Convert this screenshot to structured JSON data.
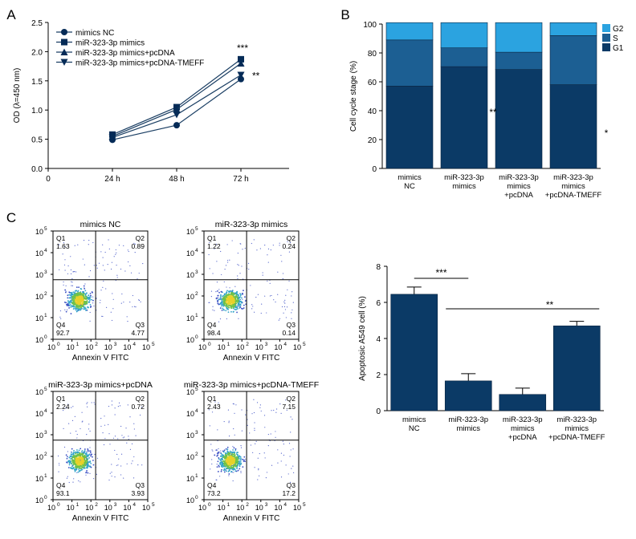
{
  "colors": {
    "navy": "#0b3a66",
    "mid": "#1c5f93",
    "light": "#2ba3e0",
    "dark": "#052b57",
    "line": "#1a3e63",
    "axis": "#000000"
  },
  "panel_labels": {
    "A": "A",
    "B": "B",
    "C": "C"
  },
  "chart_data": [
    {
      "id": "A",
      "type": "line",
      "title": "",
      "xlabel": "",
      "ylabel": "OD (λ=450 nm)",
      "x_tick_labels": [
        "0",
        "24 h",
        "48 h",
        "72 h"
      ],
      "x": [
        24,
        48,
        72
      ],
      "xlim": [
        0,
        90
      ],
      "ylim": [
        0,
        2.5
      ],
      "y_ticks": [
        "0.0",
        "0.5",
        "1.0",
        "1.5",
        "2.0",
        "2.5"
      ],
      "series": [
        {
          "name": "mimics NC",
          "marker": "circle",
          "values": [
            0.49,
            0.74,
            1.53
          ]
        },
        {
          "name": "miR-323-3p mimics",
          "marker": "square",
          "values": [
            0.58,
            1.05,
            1.87
          ]
        },
        {
          "name": "miR-323-3p mimics+pcDNA",
          "marker": "triangle-up",
          "values": [
            0.55,
            1.01,
            1.8
          ]
        },
        {
          "name": "miR-323-3p mimics+pcDNA-TMEFF",
          "marker": "triangle-down",
          "values": [
            0.53,
            0.92,
            1.6
          ]
        }
      ],
      "annotations": [
        "***",
        "**"
      ]
    },
    {
      "id": "B",
      "type": "bar",
      "stacked": true,
      "ylabel": "Cell cycle stage (%)",
      "ylim": [
        0,
        100
      ],
      "y_ticks": [
        "0",
        "20",
        "40",
        "60",
        "80",
        "100"
      ],
      "categories": [
        [
          "mimics",
          "NC"
        ],
        [
          "miR-323-3p",
          "mimics"
        ],
        [
          "miR-323-3p",
          "mimics",
          "+pcDNA"
        ],
        [
          "miR-323-3p",
          "mimics",
          "+pcDNA-TMEFF"
        ]
      ],
      "series": [
        {
          "name": "G1",
          "values": [
            57,
            70.5,
            68.5,
            58
          ]
        },
        {
          "name": "S",
          "values": [
            32,
            13,
            12,
            34
          ]
        },
        {
          "name": "G2",
          "values": [
            12,
            17.5,
            20.5,
            9
          ]
        }
      ],
      "legend": [
        "G2",
        "S",
        "G1"
      ],
      "annotations": [
        "**",
        "*"
      ]
    },
    {
      "id": "C-flow",
      "type": "scatter",
      "xlabel": "Annexin V FITC",
      "axis_tick_labels": [
        "10",
        "10",
        "10",
        "10",
        "10",
        "10"
      ],
      "axis_tick_exps": [
        "0",
        "1",
        "2",
        "3",
        "4",
        "5"
      ],
      "plots": [
        {
          "title": "mimics NC",
          "q1": {
            "label": "Q1",
            "value": "1.63"
          },
          "q2": {
            "label": "Q2",
            "value": "0.89"
          },
          "q3": {
            "label": "Q3",
            "value": "4.77"
          },
          "q4": {
            "label": "Q4",
            "value": "92.7"
          }
        },
        {
          "title": "miR-323-3p mimics",
          "q1": {
            "label": "Q1",
            "value": "1.22"
          },
          "q2": {
            "label": "Q2",
            "value": "0.24"
          },
          "q3": {
            "label": "Q3",
            "value": "0.14"
          },
          "q4": {
            "label": "Q4",
            "value": "98.4"
          }
        },
        {
          "title": "miR-323-3p mimics+pcDNA",
          "q1": {
            "label": "Q1",
            "value": "2.24"
          },
          "q2": {
            "label": "Q2",
            "value": "0.72"
          },
          "q3": {
            "label": "Q3",
            "value": "3.93"
          },
          "q4": {
            "label": "Q4",
            "value": "93.1"
          }
        },
        {
          "title": "miR-323-3p mimics+pcDNA-TMEFF",
          "q1": {
            "label": "Q1",
            "value": "2.43"
          },
          "q2": {
            "label": "Q2",
            "value": "7.15"
          },
          "q3": {
            "label": "Q3",
            "value": "17.2"
          },
          "q4": {
            "label": "Q4",
            "value": "73.2"
          }
        }
      ]
    },
    {
      "id": "C-bar",
      "type": "bar",
      "ylabel": "Apoptosic A549 cell (%)",
      "ylim": [
        0,
        8
      ],
      "y_ticks": [
        "0",
        "2",
        "4",
        "6",
        "8"
      ],
      "categories": [
        [
          "mimics",
          "NC"
        ],
        [
          "miR-323-3p",
          "mimics"
        ],
        [
          "miR-323-3p",
          "mimics",
          "+pcDNA"
        ],
        [
          "miR-323-3p",
          "mimics",
          "+pcDNA-TMEFF"
        ]
      ],
      "values": [
        6.45,
        1.65,
        0.9,
        4.7
      ],
      "errors": [
        0.4,
        0.4,
        0.35,
        0.25
      ],
      "annotations": [
        "***",
        "**"
      ]
    }
  ]
}
